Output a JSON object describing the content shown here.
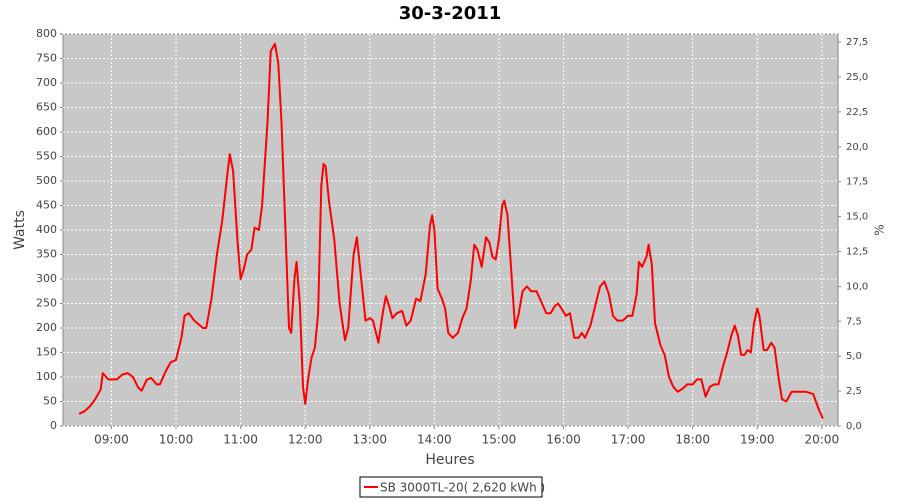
{
  "chart_data": {
    "type": "line",
    "title": "30-3-2011",
    "xlabel": "Heures",
    "ylabel": "Watts",
    "y2label": "%",
    "x": [
      "08:30",
      "08:35",
      "08:40",
      "08:45",
      "08:50",
      "08:52",
      "08:57",
      "09:00",
      "09:05",
      "09:10",
      "09:15",
      "09:20",
      "09:25",
      "09:28",
      "09:33",
      "09:37",
      "09:42",
      "09:45",
      "09:50",
      "09:55",
      "10:00",
      "10:05",
      "10:08",
      "10:12",
      "10:17",
      "10:25",
      "10:28",
      "10:33",
      "10:38",
      "10:43",
      "10:48",
      "10:50",
      "10:53",
      "10:57",
      "11:00",
      "11:03",
      "11:06",
      "11:10",
      "11:13",
      "11:17",
      "11:20",
      "11:25",
      "11:28",
      "11:32",
      "11:35",
      "11:38",
      "11:42",
      "11:45",
      "11:47",
      "11:50",
      "11:52",
      "11:55",
      "11:58",
      "12:00",
      "12:03",
      "12:06",
      "12:09",
      "12:12",
      "12:15",
      "12:17",
      "12:19",
      "12:22",
      "12:27",
      "12:32",
      "12:37",
      "12:40",
      "12:45",
      "12:48",
      "12:52",
      "12:56",
      "13:00",
      "13:03",
      "13:08",
      "13:12",
      "13:15",
      "13:18",
      "13:21",
      "13:25",
      "13:30",
      "13:34",
      "13:38",
      "13:43",
      "13:47",
      "13:52",
      "13:56",
      "13:58",
      "14:00",
      "14:03",
      "14:07",
      "14:10",
      "14:13",
      "14:17",
      "14:22",
      "14:26",
      "14:30",
      "14:34",
      "14:37",
      "14:40",
      "14:44",
      "14:48",
      "14:51",
      "14:54",
      "14:57",
      "15:00",
      "15:03",
      "15:05",
      "15:08",
      "15:11",
      "15:15",
      "15:18",
      "15:22",
      "15:26",
      "15:30",
      "15:35",
      "15:40",
      "15:44",
      "15:48",
      "15:52",
      "15:55",
      "15:58",
      "16:02",
      "16:06",
      "16:10",
      "16:14",
      "16:17",
      "16:20",
      "16:25",
      "16:30",
      "16:34",
      "16:38",
      "16:42",
      "16:46",
      "16:50",
      "16:55",
      "17:00",
      "17:04",
      "17:08",
      "17:10",
      "17:13",
      "17:17",
      "17:19",
      "17:22",
      "17:25",
      "17:30",
      "17:34",
      "17:38",
      "17:42",
      "17:46",
      "17:50",
      "17:55",
      "18:00",
      "18:04",
      "18:08",
      "18:12",
      "18:16",
      "18:20",
      "18:24",
      "18:28",
      "18:32",
      "18:36",
      "18:39",
      "18:42",
      "18:45",
      "18:48",
      "18:51",
      "18:54",
      "18:57",
      "19:00",
      "19:02",
      "19:06",
      "19:09",
      "19:13",
      "19:16",
      "19:20",
      "19:23",
      "19:27",
      "19:32",
      "19:37",
      "19:45",
      "19:52",
      "19:57",
      "20:01"
    ],
    "series": [
      {
        "name": "SB 3000TL-20( 2,620 kWh )",
        "color": "#ff0000",
        "values": [
          25,
          30,
          40,
          55,
          75,
          108,
          95,
          95,
          95,
          105,
          108,
          100,
          78,
          72,
          95,
          98,
          85,
          85,
          110,
          130,
          135,
          180,
          225,
          230,
          215,
          200,
          200,
          260,
          350,
          420,
          520,
          555,
          520,
          380,
          300,
          320,
          350,
          360,
          405,
          400,
          450,
          620,
          765,
          780,
          740,
          620,
          380,
          200,
          190,
          300,
          335,
          250,
          80,
          45,
          100,
          140,
          160,
          230,
          490,
          535,
          530,
          460,
          380,
          250,
          175,
          200,
          350,
          385,
          300,
          215,
          220,
          215,
          170,
          230,
          265,
          245,
          220,
          230,
          235,
          205,
          215,
          260,
          255,
          310,
          410,
          430,
          400,
          280,
          260,
          240,
          190,
          180,
          190,
          220,
          240,
          300,
          370,
          360,
          325,
          385,
          375,
          345,
          340,
          380,
          450,
          460,
          430,
          330,
          200,
          225,
          275,
          285,
          275,
          275,
          250,
          230,
          230,
          245,
          250,
          240,
          225,
          230,
          180,
          180,
          190,
          180,
          205,
          250,
          285,
          295,
          270,
          225,
          215,
          215,
          225,
          225,
          270,
          335,
          325,
          345,
          370,
          330,
          210,
          165,
          145,
          100,
          80,
          70,
          75,
          85,
          85,
          95,
          95,
          60,
          80,
          85,
          85,
          120,
          150,
          185,
          205,
          185,
          145,
          145,
          155,
          150,
          210,
          240,
          225,
          155,
          155,
          170,
          160,
          95,
          55,
          50,
          70,
          70,
          70,
          65,
          35,
          15
        ]
      }
    ],
    "xlim": [
      "08:15",
      "20:15"
    ],
    "xticks": [
      "09:00",
      "10:00",
      "11:00",
      "12:00",
      "13:00",
      "14:00",
      "15:00",
      "16:00",
      "17:00",
      "18:00",
      "19:00",
      "20:00"
    ],
    "ylim": [
      0,
      800
    ],
    "yticks": [
      0,
      50,
      100,
      150,
      200,
      250,
      300,
      350,
      400,
      450,
      500,
      550,
      600,
      650,
      700,
      750,
      800
    ],
    "y2lim": [
      0,
      28.08
    ],
    "y2ticks": [
      {
        "value": 0,
        "label": "0,0"
      },
      {
        "value": 2.5,
        "label": "2,5"
      },
      {
        "value": 5,
        "label": "5,0"
      },
      {
        "value": 7.5,
        "label": "7,5"
      },
      {
        "value": 10,
        "label": "10,0"
      },
      {
        "value": 12.5,
        "label": "12,5"
      },
      {
        "value": 15,
        "label": "15,0"
      },
      {
        "value": 17.5,
        "label": "17,5"
      },
      {
        "value": 20,
        "label": "20,0"
      },
      {
        "value": 22.5,
        "label": "22,5"
      },
      {
        "value": 25,
        "label": "25,0"
      },
      {
        "value": 27.5,
        "label": "27,5"
      }
    ],
    "grid": true
  }
}
